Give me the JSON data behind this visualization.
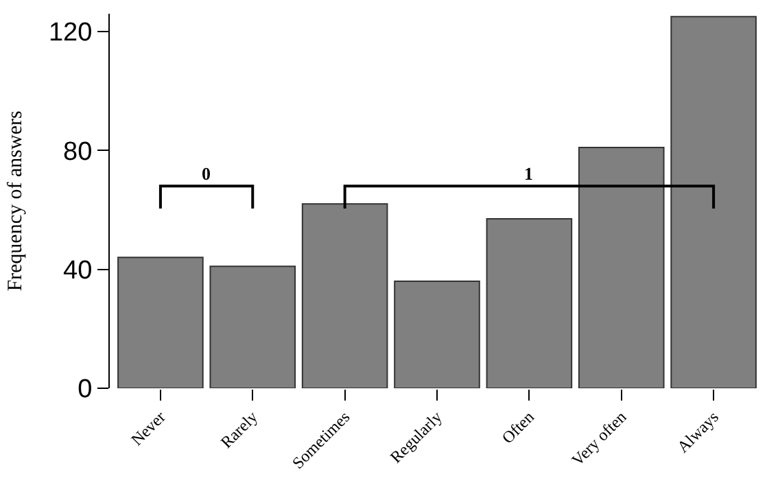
{
  "chart_data": {
    "type": "bar",
    "ylabel": "Frequency of answers",
    "categories": [
      "Never",
      "Rarely",
      "Sometimes",
      "Regularly",
      "Often",
      "Very often",
      "Always"
    ],
    "values": [
      44,
      41,
      62,
      36,
      57,
      81,
      125
    ],
    "color": "#808080",
    "ylim": [
      0,
      126
    ],
    "yticks": [
      0,
      40,
      80,
      120
    ],
    "annotations": [
      "0",
      "1"
    ]
  }
}
